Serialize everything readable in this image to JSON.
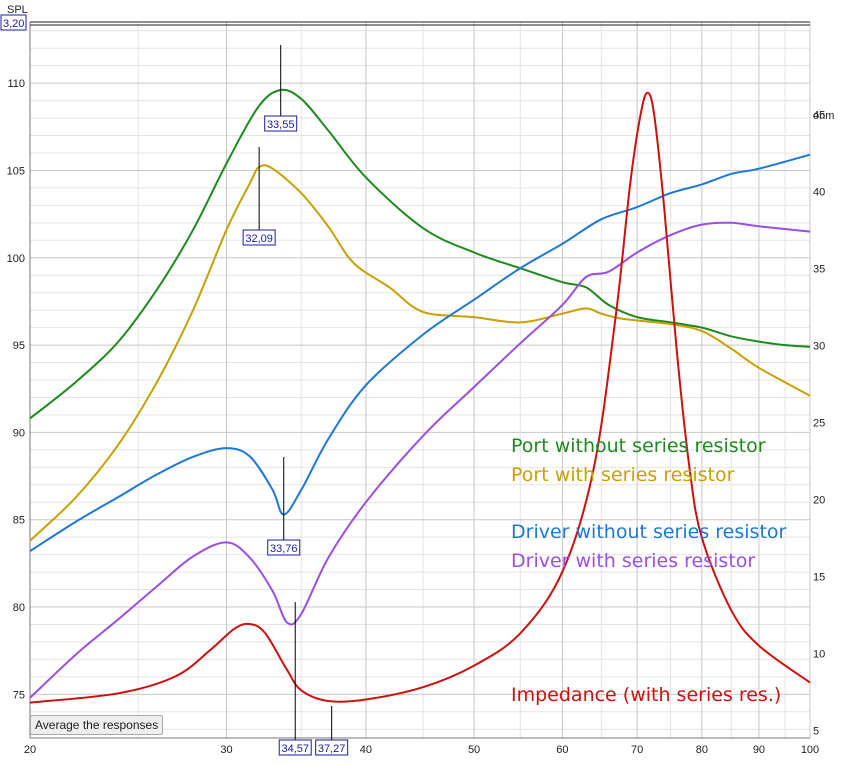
{
  "axis": {
    "y_left_label": "SPL",
    "y_right_label": "ohm",
    "y_left_value_box": "3,20"
  },
  "button": {
    "average_label": "Average the responses"
  },
  "chart_data": {
    "type": "line",
    "x_scale": "log",
    "xlim": [
      20,
      100
    ],
    "ylim_left": [
      72.5,
      113.5
    ],
    "ylim_right": [
      4.5,
      51
    ],
    "grid": true,
    "x_ticks": [
      20,
      30,
      40,
      50,
      60,
      70,
      80,
      90,
      100
    ],
    "x_minor": [
      25,
      35,
      45,
      55,
      65,
      75,
      85,
      95
    ],
    "y_left_ticks": [
      75,
      80,
      85,
      90,
      95,
      100,
      105,
      110
    ],
    "y_right_ticks": [
      5,
      10,
      15,
      20,
      25,
      30,
      35,
      40,
      45
    ],
    "series": [
      {
        "name": "Port without series resistor",
        "color": "#1e8a1e",
        "axis": "left",
        "points": [
          [
            20,
            90.8
          ],
          [
            22,
            92.9
          ],
          [
            24,
            95.2
          ],
          [
            26,
            98.2
          ],
          [
            28,
            101.6
          ],
          [
            30,
            105.4
          ],
          [
            32,
            108.6
          ],
          [
            33.5,
            109.6
          ],
          [
            35,
            109.1
          ],
          [
            37,
            107.3
          ],
          [
            40,
            104.6
          ],
          [
            45,
            101.7
          ],
          [
            50,
            100.3
          ],
          [
            55,
            99.4
          ],
          [
            60,
            98.6
          ],
          [
            63,
            98.3
          ],
          [
            66,
            97.3
          ],
          [
            70,
            96.6
          ],
          [
            75,
            96.3
          ],
          [
            80,
            96.0
          ],
          [
            85,
            95.5
          ],
          [
            90,
            95.2
          ],
          [
            95,
            95.0
          ],
          [
            100,
            94.9
          ]
        ]
      },
      {
        "name": "Port with series resistor",
        "color": "#c8a000",
        "axis": "left",
        "points": [
          [
            20,
            83.8
          ],
          [
            22,
            86.3
          ],
          [
            24,
            89.3
          ],
          [
            26,
            92.9
          ],
          [
            28,
            97.0
          ],
          [
            30,
            101.6
          ],
          [
            31.5,
            104.3
          ],
          [
            32.1,
            105.2
          ],
          [
            33,
            105.1
          ],
          [
            35,
            103.7
          ],
          [
            37,
            101.8
          ],
          [
            39,
            99.7
          ],
          [
            42,
            98.3
          ],
          [
            45,
            96.9
          ],
          [
            50,
            96.6
          ],
          [
            55,
            96.3
          ],
          [
            60,
            96.8
          ],
          [
            63,
            97.1
          ],
          [
            65,
            96.8
          ],
          [
            68,
            96.5
          ],
          [
            75,
            96.2
          ],
          [
            80,
            95.8
          ],
          [
            85,
            94.8
          ],
          [
            90,
            93.7
          ],
          [
            100,
            92.1
          ]
        ]
      },
      {
        "name": "Driver without series resistor",
        "color": "#1f77d4",
        "axis": "left",
        "points": [
          [
            20,
            83.2
          ],
          [
            22,
            84.9
          ],
          [
            24,
            86.3
          ],
          [
            26,
            87.6
          ],
          [
            28,
            88.6
          ],
          [
            30,
            89.1
          ],
          [
            31.5,
            88.6
          ],
          [
            33,
            86.7
          ],
          [
            33.76,
            85.3
          ],
          [
            35,
            86.7
          ],
          [
            37,
            89.6
          ],
          [
            40,
            92.7
          ],
          [
            45,
            95.6
          ],
          [
            50,
            97.6
          ],
          [
            55,
            99.4
          ],
          [
            60,
            100.8
          ],
          [
            65,
            102.2
          ],
          [
            70,
            102.9
          ],
          [
            75,
            103.7
          ],
          [
            80,
            104.2
          ],
          [
            85,
            104.8
          ],
          [
            90,
            105.1
          ],
          [
            100,
            105.9
          ]
        ]
      },
      {
        "name": "Driver with series resistor",
        "color": "#9b4fe0",
        "axis": "left",
        "points": [
          [
            20,
            74.8
          ],
          [
            22,
            77.3
          ],
          [
            24,
            79.3
          ],
          [
            26,
            81.2
          ],
          [
            28,
            82.9
          ],
          [
            30,
            83.7
          ],
          [
            31.5,
            82.8
          ],
          [
            33,
            80.9
          ],
          [
            34,
            79.1
          ],
          [
            35,
            79.6
          ],
          [
            37,
            82.8
          ],
          [
            40,
            86.0
          ],
          [
            45,
            89.8
          ],
          [
            50,
            92.6
          ],
          [
            55,
            95.1
          ],
          [
            60,
            97.3
          ],
          [
            63,
            98.9
          ],
          [
            66,
            99.2
          ],
          [
            70,
            100.3
          ],
          [
            75,
            101.3
          ],
          [
            80,
            101.9
          ],
          [
            85,
            102.0
          ],
          [
            90,
            101.8
          ],
          [
            100,
            101.5
          ]
        ]
      },
      {
        "name": "Impedance (with series res.)",
        "color": "#cc1010",
        "axis": "right",
        "points": [
          [
            20,
            6.8
          ],
          [
            24,
            7.4
          ],
          [
            27,
            8.5
          ],
          [
            29,
            10.2
          ],
          [
            30.5,
            11.6
          ],
          [
            31.5,
            11.9
          ],
          [
            32.5,
            11.3
          ],
          [
            34,
            8.9
          ],
          [
            35,
            7.6
          ],
          [
            37,
            6.9
          ],
          [
            40,
            7.0
          ],
          [
            45,
            7.8
          ],
          [
            50,
            9.2
          ],
          [
            55,
            11.3
          ],
          [
            60,
            15.3
          ],
          [
            64,
            22.0
          ],
          [
            67,
            32.0
          ],
          [
            69,
            40.5
          ],
          [
            70.5,
            45.0
          ],
          [
            71.5,
            46.4
          ],
          [
            72.5,
            45.0
          ],
          [
            74,
            39.0
          ],
          [
            76,
            29.5
          ],
          [
            78,
            22.0
          ],
          [
            80,
            17.5
          ],
          [
            85,
            12.8
          ],
          [
            90,
            10.5
          ],
          [
            100,
            8.1
          ]
        ]
      }
    ],
    "markers": [
      {
        "label": "33,55",
        "x": 33.55,
        "y": 109.6
      },
      {
        "label": "32,09",
        "x": 32.09,
        "y": 105.2
      },
      {
        "label": "33,76",
        "x": 33.76,
        "y": 85.3
      },
      {
        "label": "34,57",
        "x": 34.57,
        "y": 74.5
      },
      {
        "label": "37,27",
        "x": 37.27,
        "y": 74.2
      }
    ]
  }
}
